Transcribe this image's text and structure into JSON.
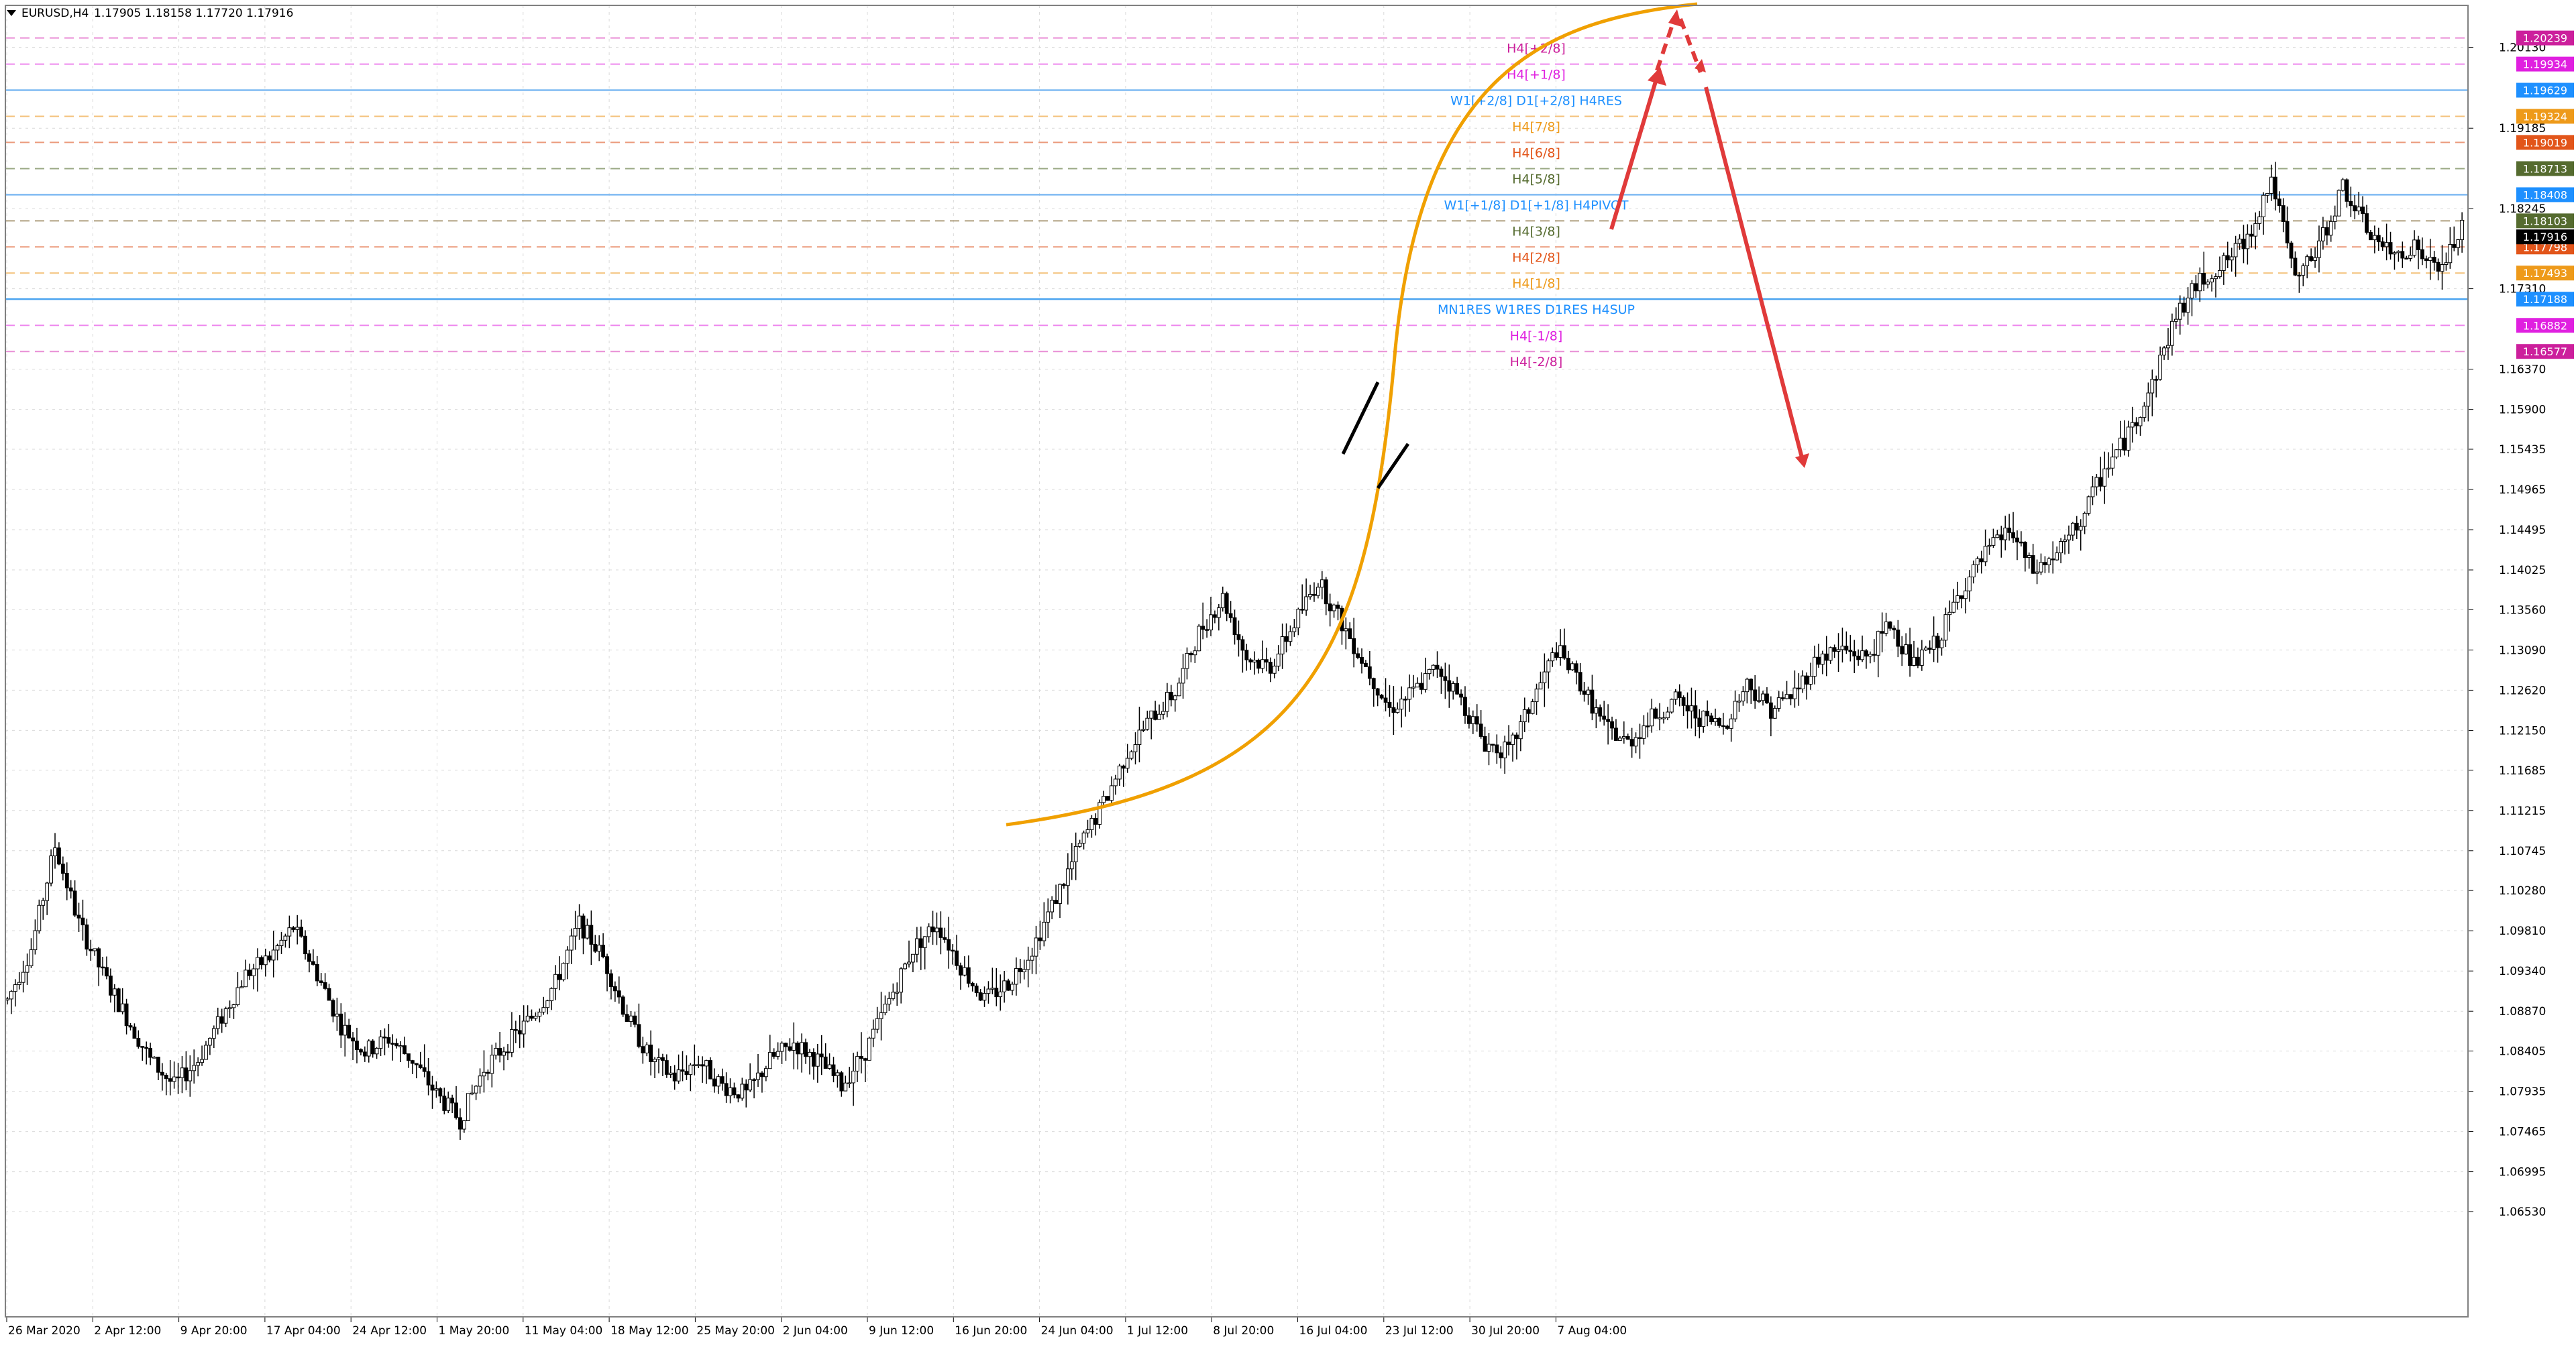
{
  "header": {
    "symbol": "EURUSD,H4",
    "ohlc": "1.17905 1.18158 1.17720 1.17916"
  },
  "chart_data": {
    "type": "candlestick",
    "symbol": "EURUSD",
    "timeframe": "H4",
    "grid": true,
    "ylim": [
      1.053,
      1.2062
    ],
    "x_ticks": [
      "26 Mar 2020",
      "2 Apr 12:00",
      "9 Apr 20:00",
      "17 Apr 04:00",
      "24 Apr 12:00",
      "1 May 20:00",
      "11 May 04:00",
      "18 May 12:00",
      "25 May 20:00",
      "2 Jun 04:00",
      "9 Jun 12:00",
      "16 Jun 20:00",
      "24 Jun 04:00",
      "1 Jul 12:00",
      "8 Jul 20:00",
      "16 Jul 04:00",
      "23 Jul 12:00",
      "30 Jul 20:00",
      "7 Aug 04:00"
    ],
    "y_ticks": [
      "1.20130",
      "1.19185",
      "1.18245",
      "1.17310",
      "1.16370",
      "1.15900",
      "1.15435",
      "1.14965",
      "1.14495",
      "1.14025",
      "1.13560",
      "1.13090",
      "1.12620",
      "1.12150",
      "1.11685",
      "1.11215",
      "1.10745",
      "1.10280",
      "1.09810",
      "1.09340",
      "1.08870",
      "1.08405",
      "1.07935",
      "1.07465",
      "1.06995",
      "1.06530"
    ],
    "price_path": [
      [
        0,
        1.09
      ],
      [
        6,
        1.096
      ],
      [
        12,
        1.108
      ],
      [
        18,
        1.099
      ],
      [
        24,
        1.093
      ],
      [
        30,
        1.088
      ],
      [
        36,
        1.083
      ],
      [
        42,
        1.08
      ],
      [
        48,
        1.083
      ],
      [
        54,
        1.088
      ],
      [
        60,
        1.093
      ],
      [
        66,
        1.095
      ],
      [
        72,
        1.0985
      ],
      [
        78,
        1.093
      ],
      [
        84,
        1.087
      ],
      [
        90,
        1.084
      ],
      [
        96,
        1.0855
      ],
      [
        102,
        1.083
      ],
      [
        108,
        1.079
      ],
      [
        114,
        1.076
      ],
      [
        120,
        1.082
      ],
      [
        126,
        1.085
      ],
      [
        132,
        1.088
      ],
      [
        138,
        1.092
      ],
      [
        144,
        1.099
      ],
      [
        150,
        1.095
      ],
      [
        156,
        1.088
      ],
      [
        162,
        1.083
      ],
      [
        168,
        1.081
      ],
      [
        174,
        1.083
      ],
      [
        180,
        1.08
      ],
      [
        186,
        1.079
      ],
      [
        192,
        1.083
      ],
      [
        198,
        1.085
      ],
      [
        204,
        1.083
      ],
      [
        210,
        1.08
      ],
      [
        216,
        1.084
      ],
      [
        222,
        1.09
      ],
      [
        228,
        1.096
      ],
      [
        234,
        1.099
      ],
      [
        240,
        1.094
      ],
      [
        246,
        1.09
      ],
      [
        252,
        1.092
      ],
      [
        258,
        1.096
      ],
      [
        264,
        1.102
      ],
      [
        270,
        1.108
      ],
      [
        276,
        1.113
      ],
      [
        282,
        1.119
      ],
      [
        288,
        1.123
      ],
      [
        294,
        1.126
      ],
      [
        300,
        1.133
      ],
      [
        306,
        1.137
      ],
      [
        312,
        1.13
      ],
      [
        318,
        1.129
      ],
      [
        324,
        1.134
      ],
      [
        330,
        1.139
      ],
      [
        336,
        1.134
      ],
      [
        342,
        1.129
      ],
      [
        348,
        1.124
      ],
      [
        354,
        1.126
      ],
      [
        360,
        1.129
      ],
      [
        366,
        1.125
      ],
      [
        372,
        1.12
      ],
      [
        378,
        1.119
      ],
      [
        384,
        1.125
      ],
      [
        390,
        1.131
      ],
      [
        396,
        1.127
      ],
      [
        402,
        1.122
      ],
      [
        408,
        1.12
      ],
      [
        414,
        1.123
      ],
      [
        420,
        1.125
      ],
      [
        426,
        1.123
      ],
      [
        432,
        1.122
      ],
      [
        438,
        1.127
      ],
      [
        444,
        1.124
      ],
      [
        450,
        1.126
      ],
      [
        456,
        1.13
      ],
      [
        462,
        1.131
      ],
      [
        468,
        1.13
      ],
      [
        474,
        1.134
      ],
      [
        480,
        1.129
      ],
      [
        486,
        1.132
      ],
      [
        492,
        1.138
      ],
      [
        498,
        1.142
      ],
      [
        504,
        1.145
      ],
      [
        510,
        1.14
      ],
      [
        516,
        1.142
      ],
      [
        522,
        1.146
      ],
      [
        528,
        1.152
      ],
      [
        534,
        1.156
      ],
      [
        540,
        1.162
      ],
      [
        546,
        1.17
      ],
      [
        552,
        1.174
      ],
      [
        558,
        1.176
      ],
      [
        564,
        1.179
      ],
      [
        570,
        1.186
      ],
      [
        576,
        1.174
      ],
      [
        582,
        1.178
      ],
      [
        588,
        1.185
      ],
      [
        594,
        1.18
      ],
      [
        600,
        1.177
      ],
      [
        606,
        1.178
      ],
      [
        612,
        1.175
      ],
      [
        618,
        1.18
      ]
    ],
    "levels": [
      {
        "price": 1.20239,
        "tag": "1.20239",
        "label": "H4[+2/8]",
        "color": "#cc1f9c",
        "line": "#e98fd6",
        "dash": true
      },
      {
        "price": 1.19934,
        "tag": "1.19934",
        "label": "H4[+1/8]",
        "color": "#e020e0",
        "line": "#ee88ee",
        "dash": true
      },
      {
        "price": 1.19629,
        "tag": "1.19629",
        "label": "W1[+2/8] D1[+2/8] H4RES",
        "color": "#1e90ff",
        "line": "#7fbaf2",
        "dash": false
      },
      {
        "price": 1.19324,
        "tag": "1.19324",
        "label": "H4[7/8]",
        "color": "#ee9a1a",
        "line": "#f3c17a",
        "dash": true
      },
      {
        "price": 1.19019,
        "tag": "1.19019",
        "label": "H4[6/8]",
        "color": "#e2551a",
        "line": "#eb9a7c",
        "dash": true
      },
      {
        "price": 1.18713,
        "tag": "1.18713",
        "label": "H4[5/8]",
        "color": "#556b2f",
        "line": "#9aa884",
        "dash": true
      },
      {
        "price": 1.18408,
        "tag": "1.18408",
        "label": "W1[+1/8] D1[+1/8] H4PIVOT",
        "color": "#1e90ff",
        "line": "#7fbaf2",
        "dash": false
      },
      {
        "price": 1.18103,
        "tag": "1.18103",
        "label": "H4[3/8]",
        "color": "#556b2f",
        "line": "#b0a080",
        "dash": true
      },
      {
        "price": 1.17798,
        "tag": "1.17798",
        "label": "H4[2/8]",
        "color": "#e2551a",
        "line": "#eb9a7c",
        "dash": true
      },
      {
        "price": 1.17493,
        "tag": "1.17493",
        "label": "H4[1/8]",
        "color": "#ee9a1a",
        "line": "#f3c17a",
        "dash": true
      },
      {
        "price": 1.17188,
        "tag": "1.17188",
        "label": "MN1RES W1RES D1RES H4SUP",
        "color": "#1e90ff",
        "line": "#4aa3f0",
        "dash": false
      },
      {
        "price": 1.16882,
        "tag": "1.16882",
        "label": "H4[-1/8]",
        "color": "#e020e0",
        "line": "#ee88ee",
        "dash": true
      },
      {
        "price": 1.16577,
        "tag": "1.16577",
        "label": "H4[-2/8]",
        "color": "#cc1f9c",
        "line": "#e98fd6",
        "dash": true
      }
    ],
    "current_price": {
      "price": 1.17916,
      "tag": "1.17916",
      "color": "#000000"
    }
  }
}
